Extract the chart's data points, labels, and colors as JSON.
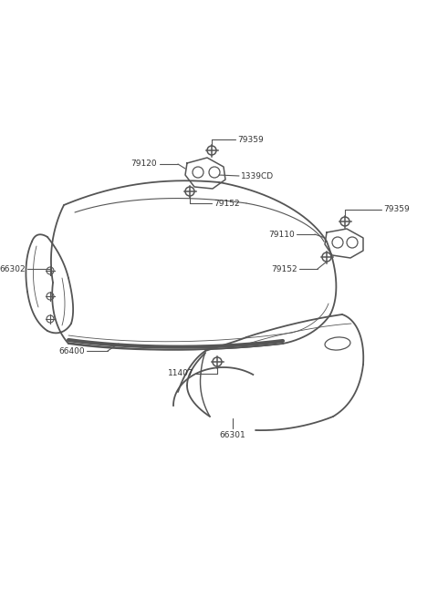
{
  "bg_color": "#ffffff",
  "line_color": "#555555",
  "text_color": "#333333",
  "figsize": [
    4.8,
    6.55
  ],
  "dpi": 100,
  "lw_main": 1.3,
  "lw_inner": 0.8,
  "lw_thin": 0.6,
  "fontsize": 6.5
}
